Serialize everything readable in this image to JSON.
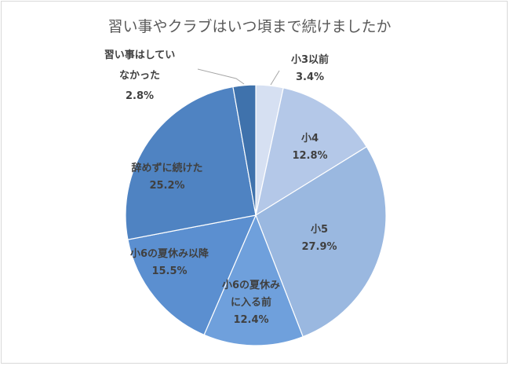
{
  "chart_data": {
    "type": "pie",
    "title": "習い事やクラブはいつ頃まで続けましたか",
    "slices": [
      {
        "label_lines": [
          "小3以前"
        ],
        "pct_label": "3.4%",
        "value": 3.4,
        "color": "#d6e0f2"
      },
      {
        "label_lines": [
          "小4"
        ],
        "pct_label": "12.8%",
        "value": 12.8,
        "color": "#b4c8e8"
      },
      {
        "label_lines": [
          "小5"
        ],
        "pct_label": "27.9%",
        "value": 27.9,
        "color": "#9ab8e0"
      },
      {
        "label_lines": [
          "小6の夏休み",
          "に入る前"
        ],
        "pct_label": "12.4%",
        "value": 12.4,
        "color": "#6fa0dc"
      },
      {
        "label_lines": [
          "小6の夏休み以降"
        ],
        "pct_label": "15.5%",
        "value": 15.5,
        "color": "#5b8fd0"
      },
      {
        "label_lines": [
          "辞めずに続けた"
        ],
        "pct_label": "25.2%",
        "value": 25.2,
        "color": "#4f83c2"
      },
      {
        "label_lines": [
          "習い事はしてい",
          "なかった"
        ],
        "pct_label": "2.8%",
        "value": 2.8,
        "color": "#3f72ac"
      }
    ]
  }
}
